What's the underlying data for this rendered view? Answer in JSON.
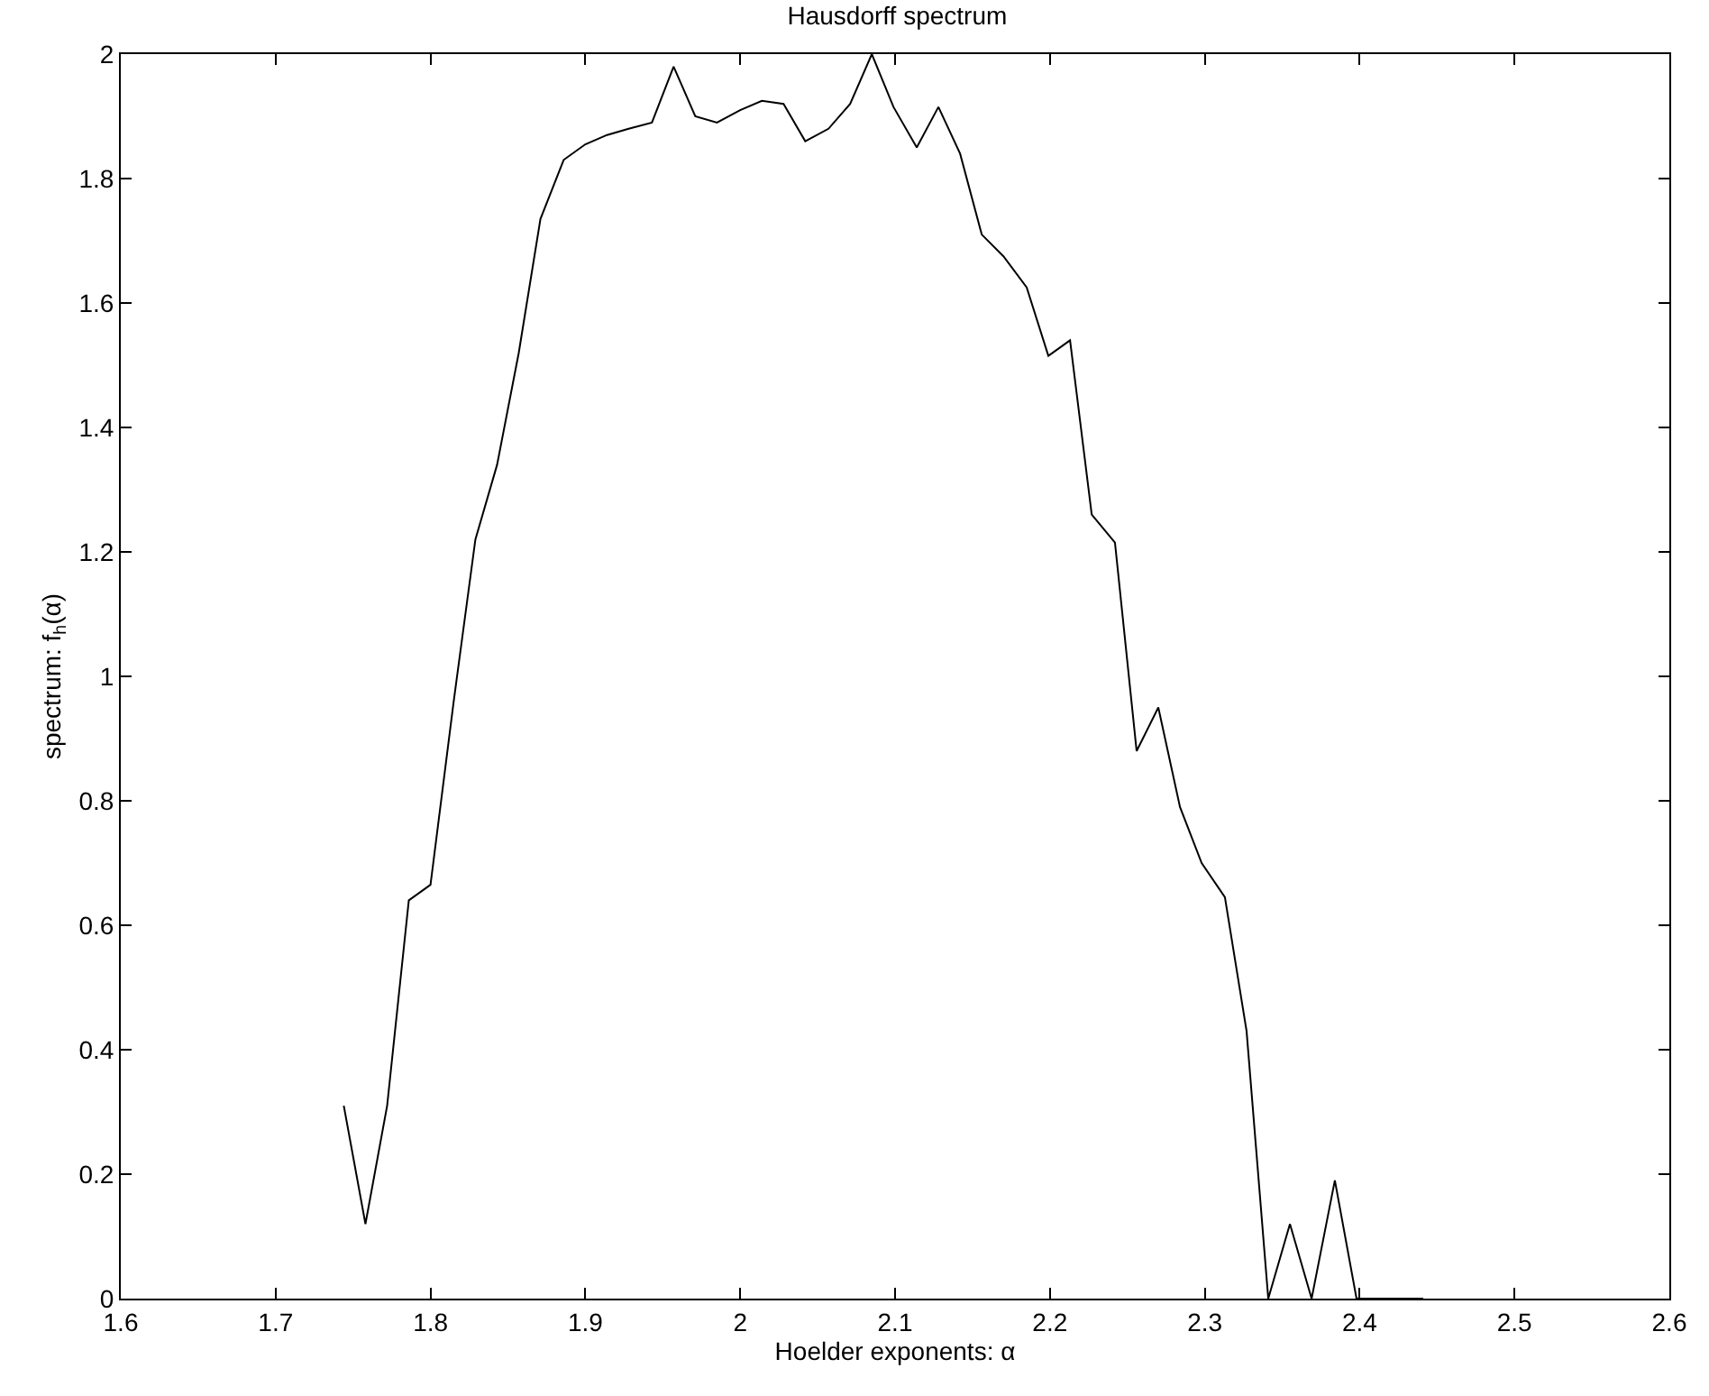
{
  "chart_data": {
    "type": "line",
    "title": "Hausdorff spectrum",
    "xlabel": "Hoelder exponents: α",
    "ylabel": "spectrum: f$_{h}$(α)",
    "x": [
      1.744,
      1.758,
      1.772,
      1.786,
      1.8,
      1.815,
      1.829,
      1.843,
      1.857,
      1.871,
      1.886,
      1.9,
      1.914,
      1.928,
      1.943,
      1.957,
      1.971,
      1.985,
      2.0,
      2.014,
      2.028,
      2.042,
      2.057,
      2.071,
      2.085,
      2.099,
      2.114,
      2.128,
      2.142,
      2.156,
      2.17,
      2.185,
      2.199,
      2.213,
      2.227,
      2.242,
      2.256,
      2.27,
      2.284,
      2.298,
      2.313,
      2.327,
      2.341,
      2.355,
      2.369,
      2.384,
      2.398,
      2.412,
      2.426,
      2.441
    ],
    "series": [
      {
        "color": "#000000",
        "values": [
          0.31,
          0.12,
          0.31,
          0.64,
          0.665,
          0.96,
          1.22,
          1.34,
          1.52,
          1.735,
          1.83,
          1.855,
          1.87,
          1.88,
          1.89,
          1.98,
          1.9,
          1.89,
          1.91,
          1.925,
          1.92,
          1.86,
          1.88,
          1.92,
          2.0,
          1.915,
          1.85,
          1.915,
          1.84,
          1.71,
          1.675,
          1.625,
          1.515,
          1.54,
          1.26,
          1.215,
          0.88,
          0.95,
          0.79,
          0.7,
          0.645,
          0.43,
          0,
          0.12,
          0,
          0.19,
          0,
          0,
          0,
          0
        ]
      }
    ],
    "xlim": [
      1.6,
      2.6
    ],
    "xticks": [
      1.6,
      1.7,
      1.8,
      1.9,
      2,
      2.1,
      2.2,
      2.3,
      2.4,
      2.5,
      2.6
    ],
    "ylim": [
      0,
      2
    ],
    "yticks": [
      0,
      0.2,
      0.4,
      0.6,
      0.8,
      1,
      1.2,
      1.4,
      1.6,
      1.8,
      2
    ],
    "grid": false,
    "marker": "none",
    "line_style": "solid"
  }
}
